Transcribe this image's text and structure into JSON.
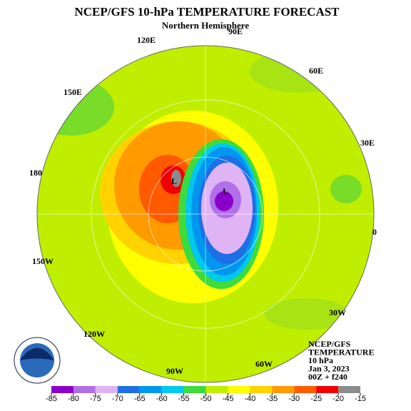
{
  "header": {
    "title": "NCEP/GFS 10-hPa TEMPERATURE FORECAST",
    "subtitle": "Northern Hemisphere"
  },
  "longitude_labels": [
    "90E",
    "120E",
    "60E",
    "150E",
    "30E",
    "180",
    "0",
    "150W",
    "30W",
    "120W",
    "90W",
    "60W"
  ],
  "lows": [
    "L",
    "L"
  ],
  "info": [
    "NCEP/GFS",
    "TEMPERATURE",
    "10 hPa",
    "Jan 3, 2023",
    "00Z + f240"
  ],
  "colorbar": {
    "ticks": [
      -85,
      -80,
      -75,
      -70,
      -65,
      -60,
      -55,
      -50,
      -45,
      -40,
      -35,
      -30,
      -25,
      -20,
      -15
    ],
    "colors": [
      "#8a00c8",
      "#b070e8",
      "#e0b4f4",
      "#1e6ee6",
      "#0096f0",
      "#00c8f0",
      "#3cdc3c",
      "#c0ee00",
      "#ffff00",
      "#ffd200",
      "#ff9a00",
      "#ff5a00",
      "#f00000",
      "#8c8c8c"
    ]
  }
}
